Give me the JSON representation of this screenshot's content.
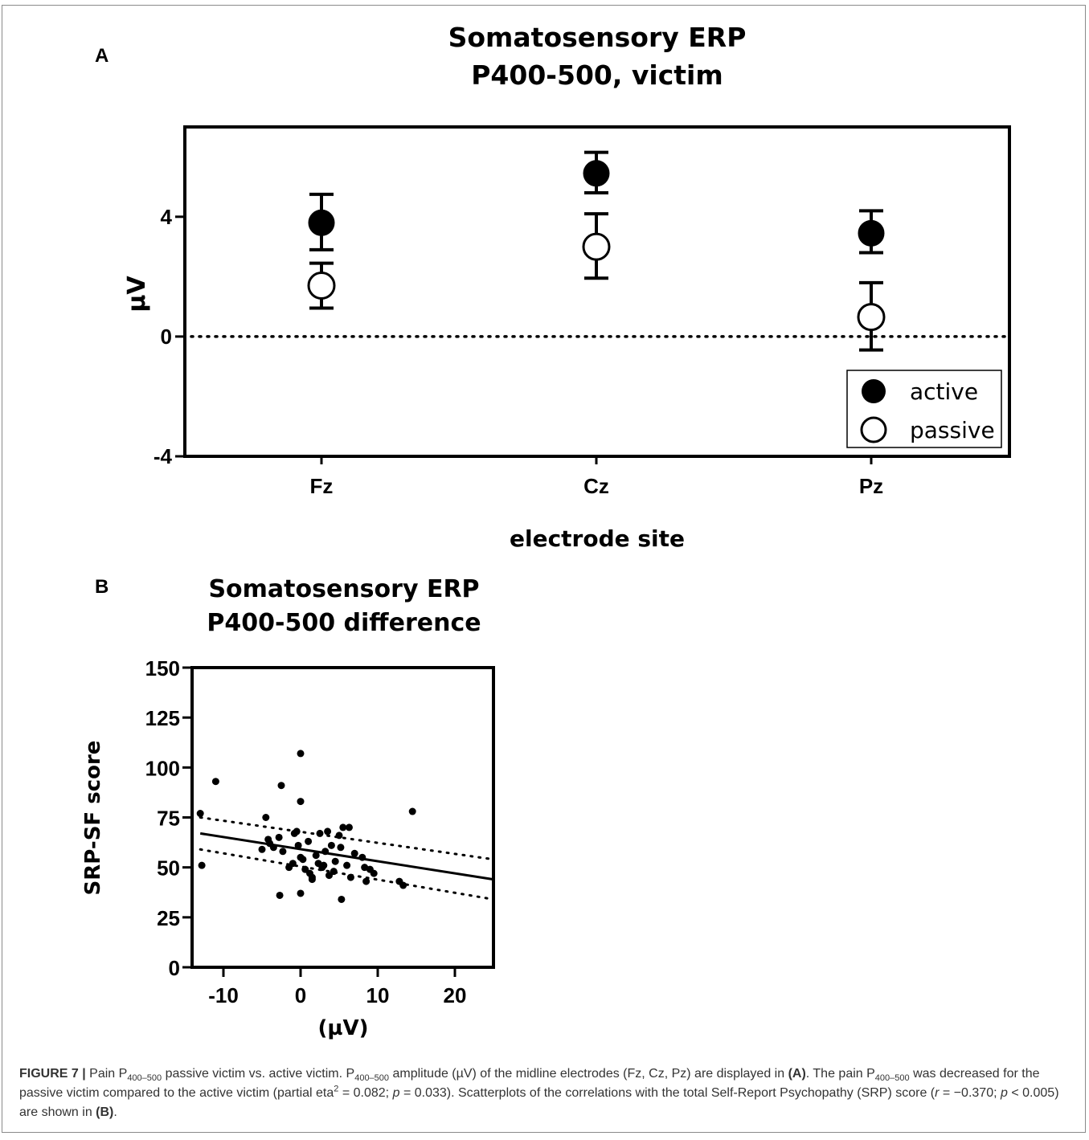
{
  "panel_labels": [
    "A",
    "B"
  ],
  "chart_data": [
    {
      "type": "scatter",
      "subtype": "dot-plot-with-error-bars",
      "title": "Somatosensory ERP\nP400-500, victim",
      "xlabel": "electrode site",
      "ylabel": "µV",
      "categories": [
        "Fz",
        "Cz",
        "Pz"
      ],
      "ylim": [
        -4,
        7
      ],
      "yticks": [
        -4,
        0,
        4
      ],
      "reference_line": {
        "y": 0,
        "style": "dotted"
      },
      "grid": false,
      "legend_position": "bottom-right",
      "series": [
        {
          "name": "active",
          "marker": "filled-circle",
          "color": "#000000",
          "values": [
            3.8,
            5.45,
            3.45
          ],
          "err_low": [
            2.9,
            4.8,
            2.8
          ],
          "err_high": [
            4.75,
            6.15,
            4.2
          ]
        },
        {
          "name": "passive",
          "marker": "open-circle",
          "color": "#000000",
          "values": [
            1.7,
            3.0,
            0.65
          ],
          "err_low": [
            0.95,
            1.95,
            -0.45
          ],
          "err_high": [
            2.45,
            4.1,
            1.8
          ]
        }
      ]
    },
    {
      "type": "scatter",
      "title": "Somatosensory ERP\nP400-500 difference",
      "xlabel": "(µV)",
      "ylabel": "SRP-SF score",
      "xlim": [
        -14,
        25
      ],
      "ylim": [
        0,
        150
      ],
      "xticks": [
        -10,
        0,
        10,
        20
      ],
      "yticks": [
        0,
        25,
        50,
        75,
        100,
        125,
        150
      ],
      "grid": false,
      "points": [
        [
          -13,
          77
        ],
        [
          -12.8,
          51
        ],
        [
          -11,
          93
        ],
        [
          -2.5,
          91
        ],
        [
          0,
          107
        ],
        [
          0,
          83
        ],
        [
          14.5,
          78
        ],
        [
          -4.5,
          75
        ],
        [
          -4.2,
          64
        ],
        [
          -4,
          62
        ],
        [
          -3.5,
          60
        ],
        [
          -2.8,
          65
        ],
        [
          -2.3,
          58
        ],
        [
          -1.5,
          50
        ],
        [
          -1,
          52
        ],
        [
          -0.8,
          67
        ],
        [
          -0.5,
          68
        ],
        [
          -0.3,
          61
        ],
        [
          0,
          55
        ],
        [
          0.3,
          54
        ],
        [
          0.6,
          49
        ],
        [
          1,
          63
        ],
        [
          1.2,
          47
        ],
        [
          1.5,
          44
        ],
        [
          2,
          56
        ],
        [
          2.3,
          52
        ],
        [
          2.5,
          67
        ],
        [
          3,
          51
        ],
        [
          3.2,
          58
        ],
        [
          3.5,
          68
        ],
        [
          3.7,
          46
        ],
        [
          4,
          61
        ],
        [
          4.3,
          48
        ],
        [
          4.5,
          53
        ],
        [
          5,
          66
        ],
        [
          5.2,
          60
        ],
        [
          5.5,
          70
        ],
        [
          6,
          51
        ],
        [
          6.3,
          70
        ],
        [
          6.5,
          45
        ],
        [
          7,
          57
        ],
        [
          8,
          55
        ],
        [
          8.3,
          50
        ],
        [
          8.5,
          43
        ],
        [
          9,
          49
        ],
        [
          9.5,
          47
        ],
        [
          12.8,
          43
        ],
        [
          13.3,
          41
        ],
        [
          -5,
          59
        ],
        [
          -2.7,
          36
        ],
        [
          0,
          37
        ],
        [
          5.3,
          34
        ],
        [
          1.5,
          45
        ],
        [
          2.8,
          50
        ]
      ],
      "regression": {
        "x": [
          -13,
          25
        ],
        "y": [
          67,
          44
        ]
      },
      "confidence_upper": {
        "x": [
          -13,
          25
        ],
        "y": [
          75,
          54
        ]
      },
      "confidence_lower": {
        "x": [
          -13,
          25
        ],
        "y": [
          59,
          34
        ]
      }
    }
  ],
  "caption": {
    "figure_label": "FIGURE 7 |",
    "line1_a": "Pain P",
    "sub_a": "400–500",
    "line1_b": "passive victim vs. active victim. P",
    "sub_b": "400–500",
    "line1_c": "amplitude (µV) of the midline electrodes (Fz, Cz, Pz) are displayed in",
    "ref_a": "(A)",
    "line1_d": ". The pain P",
    "sub_c": "400–500",
    "line1_e": "was decreased for the passive victim compared to the active victim (partial eta",
    "sup_a": "2",
    "line1_f": "= 0.082;",
    "p_sym_1": "p",
    "line1_g": "= 0.033). Scatterplots of the correlations with the total Self-Report Psychopathy (SRP) score (",
    "r_sym": "r",
    "line1_h": "= −0.370;",
    "p_sym_2": "p",
    "line1_i": "< 0.005) are shown in",
    "ref_b": "(B)",
    "line1_j": "."
  }
}
